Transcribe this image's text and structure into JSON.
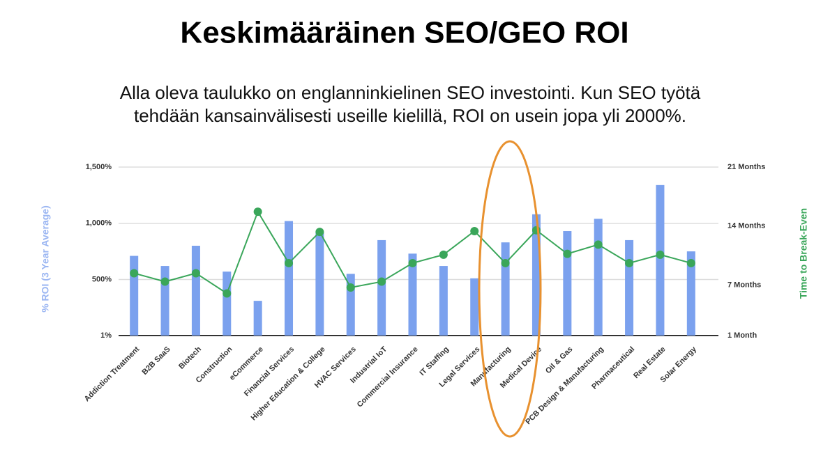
{
  "chart_data": {
    "type": "bar_line",
    "title": "Keskimääräinen SEO/GEO ROI",
    "subtitle_lines": [
      "Alla oleva taulukko on englanninkielinen SEO investointi. Kun SEO työtä",
      "tehdään kansainvälisesti useille kielillä, ROI on usein jopa yli 2000%."
    ],
    "ylabel": "% ROI (3 Year Average)",
    "y2label": "Time to Break-Even",
    "categories": [
      "Addiction Treatment",
      "B2B SaaS",
      "Biotech",
      "Construction",
      "eCommerce",
      "Financial Services",
      "Higher Education & College",
      "HVAC Services",
      "Industrial IoT",
      "Commercial Insurance",
      "IT Staffing",
      "Legal Services",
      "Manufacturing",
      "Medical Device",
      "Oil & Gas",
      "PCB Design & Manufacturing",
      "Pharmaceutical",
      "Real Estate",
      "Solar Energy"
    ],
    "series": [
      {
        "type": "bar",
        "color": "#7ba1ee",
        "values": [
          710,
          620,
          800,
          570,
          310,
          1020,
          920,
          550,
          850,
          730,
          620,
          510,
          830,
          1080,
          930,
          1040,
          850,
          1340,
          750
        ]
      },
      {
        "type": "line",
        "axis": "y2",
        "color": "#3aa65a",
        "values": [
          8.4,
          7.4,
          8.4,
          6.0,
          15.7,
          9.6,
          13.3,
          6.7,
          7.4,
          9.6,
          10.6,
          13.4,
          9.6,
          13.5,
          10.7,
          11.8,
          9.6,
          10.6,
          9.6
        ]
      }
    ],
    "ylim": [
      1,
      1500
    ],
    "yticks": [
      {
        "value": 1,
        "label": "1%"
      },
      {
        "value": 500,
        "label": "500%"
      },
      {
        "value": 1000,
        "label": "1,000%"
      },
      {
        "value": 1500,
        "label": "1,500%"
      }
    ],
    "y2lim": [
      1,
      21
    ],
    "y2ticks": [
      {
        "value": 1,
        "label": "1 Month"
      },
      {
        "value": 7,
        "label": "7 Months"
      },
      {
        "value": 14,
        "label": "14 Months"
      },
      {
        "value": 21,
        "label": "21 Months"
      }
    ],
    "grid": true
  }
}
